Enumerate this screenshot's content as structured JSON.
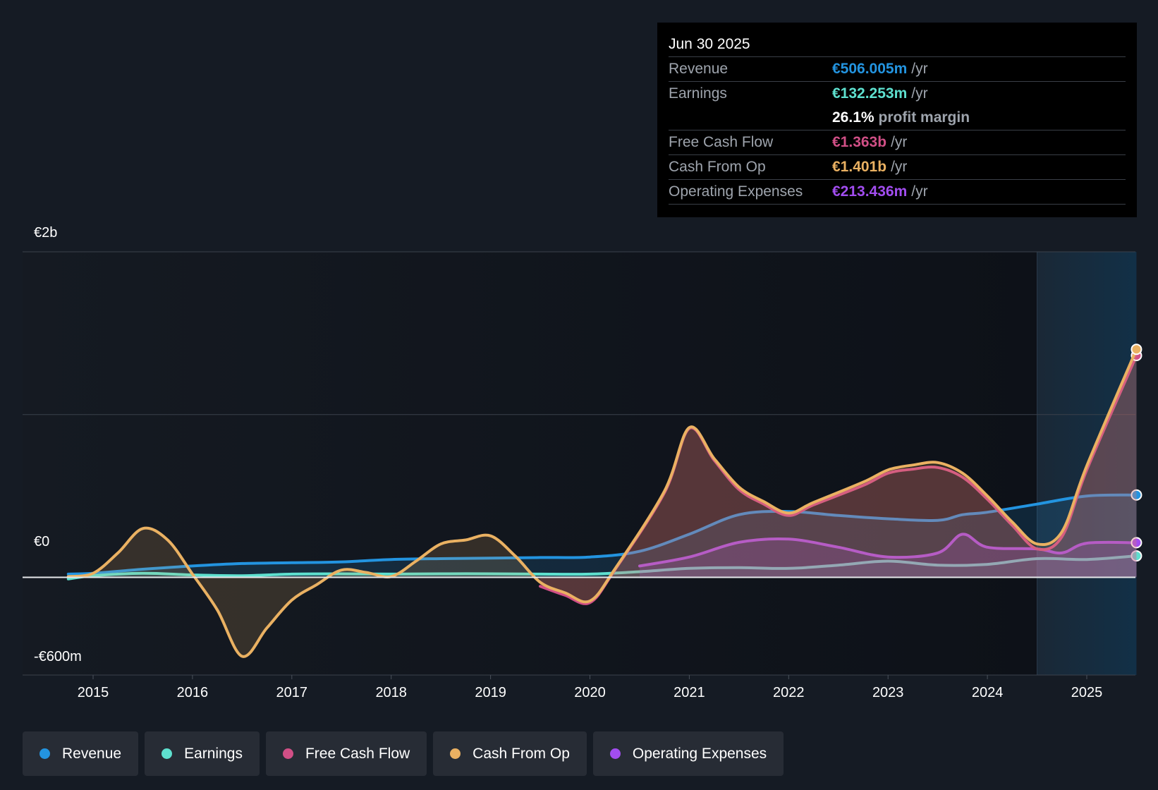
{
  "tooltip": {
    "date": "Jun 30 2025",
    "rows": [
      {
        "label": "Revenue",
        "value": "€506.005m",
        "unit": "/yr",
        "color": "#2394e0"
      },
      {
        "label": "Earnings",
        "value": "€132.253m",
        "unit": "/yr",
        "color": "#5ee0cf"
      },
      {
        "label": "",
        "value": "26.1%",
        "unit": "profit margin",
        "color": "#ffffff"
      },
      {
        "label": "Free Cash Flow",
        "value": "€1.363b",
        "unit": "/yr",
        "color": "#d14f86"
      },
      {
        "label": "Cash From Op",
        "value": "€1.401b",
        "unit": "/yr",
        "color": "#eab162"
      },
      {
        "label": "Operating Expenses",
        "value": "€213.436m",
        "unit": "/yr",
        "color": "#a24df0"
      }
    ]
  },
  "legend": [
    {
      "label": "Revenue",
      "color": "#2394e0"
    },
    {
      "label": "Earnings",
      "color": "#5ee0cf"
    },
    {
      "label": "Free Cash Flow",
      "color": "#d14f86"
    },
    {
      "label": "Cash From Op",
      "color": "#eab162"
    },
    {
      "label": "Operating Expenses",
      "color": "#a24df0"
    }
  ],
  "chart_data": {
    "type": "line",
    "title": "",
    "xlabel": "",
    "ylabel": "",
    "ylim": [
      -600,
      2000
    ],
    "xlim": [
      2014.3,
      2025.5
    ],
    "y_tick_labels": [
      {
        "value": 2000,
        "label": "€2b"
      },
      {
        "value": 0,
        "label": "€0"
      },
      {
        "value": -600,
        "label": "-€600m"
      }
    ],
    "x_ticks": [
      2015,
      2016,
      2017,
      2018,
      2019,
      2020,
      2021,
      2022,
      2023,
      2024,
      2025
    ],
    "forecast_start": 2024.5,
    "series": [
      {
        "name": "Revenue",
        "color": "#2394e0",
        "fill": true,
        "points": [
          [
            2014.75,
            20
          ],
          [
            2015,
            25
          ],
          [
            2015.5,
            50
          ],
          [
            2016,
            70
          ],
          [
            2016.5,
            85
          ],
          [
            2017,
            90
          ],
          [
            2017.5,
            95
          ],
          [
            2018,
            110
          ],
          [
            2018.5,
            115
          ],
          [
            2019,
            118
          ],
          [
            2019.5,
            122
          ],
          [
            2020,
            125
          ],
          [
            2020.5,
            160
          ],
          [
            2021,
            265
          ],
          [
            2021.5,
            385
          ],
          [
            2022,
            405
          ],
          [
            2022.5,
            380
          ],
          [
            2023,
            360
          ],
          [
            2023.5,
            350
          ],
          [
            2023.75,
            385
          ],
          [
            2024,
            400
          ],
          [
            2024.5,
            450
          ],
          [
            2025,
            500
          ],
          [
            2025.5,
            506
          ]
        ]
      },
      {
        "name": "Earnings",
        "color": "#5ee0cf",
        "fill": true,
        "points": [
          [
            2014.75,
            -10
          ],
          [
            2015,
            10
          ],
          [
            2015.5,
            25
          ],
          [
            2016,
            15
          ],
          [
            2016.5,
            10
          ],
          [
            2017,
            20
          ],
          [
            2017.5,
            22
          ],
          [
            2018,
            20
          ],
          [
            2018.5,
            22
          ],
          [
            2019,
            22
          ],
          [
            2019.5,
            20
          ],
          [
            2020,
            20
          ],
          [
            2020.5,
            35
          ],
          [
            2021,
            55
          ],
          [
            2021.5,
            60
          ],
          [
            2022,
            55
          ],
          [
            2022.5,
            75
          ],
          [
            2023,
            100
          ],
          [
            2023.5,
            75
          ],
          [
            2024,
            80
          ],
          [
            2024.5,
            115
          ],
          [
            2025,
            110
          ],
          [
            2025.5,
            132
          ]
        ]
      },
      {
        "name": "Operating Expenses",
        "color": "#a24df0",
        "fill": true,
        "points": [
          [
            2020.5,
            70
          ],
          [
            2021,
            125
          ],
          [
            2021.5,
            215
          ],
          [
            2022,
            235
          ],
          [
            2022.5,
            185
          ],
          [
            2023,
            125
          ],
          [
            2023.5,
            150
          ],
          [
            2023.75,
            265
          ],
          [
            2024,
            185
          ],
          [
            2024.5,
            175
          ],
          [
            2024.75,
            150
          ],
          [
            2025,
            210
          ],
          [
            2025.5,
            213
          ]
        ]
      },
      {
        "name": "Free Cash Flow",
        "color": "#d14f86",
        "fill": true,
        "points": [
          [
            2019.5,
            -55
          ],
          [
            2019.75,
            -110
          ],
          [
            2020,
            -155
          ],
          [
            2020.25,
            45
          ],
          [
            2020.75,
            520
          ],
          [
            2021,
            915
          ],
          [
            2021.25,
            720
          ],
          [
            2021.5,
            540
          ],
          [
            2021.75,
            450
          ],
          [
            2022,
            380
          ],
          [
            2022.25,
            445
          ],
          [
            2022.75,
            565
          ],
          [
            2023,
            640
          ],
          [
            2023.25,
            665
          ],
          [
            2023.5,
            675
          ],
          [
            2023.75,
            615
          ],
          [
            2024,
            480
          ],
          [
            2024.25,
            320
          ],
          [
            2024.5,
            175
          ],
          [
            2024.75,
            250
          ],
          [
            2025,
            660
          ],
          [
            2025.5,
            1363
          ]
        ]
      },
      {
        "name": "Cash From Op",
        "color": "#eab162",
        "fill": true,
        "points": [
          [
            2014.75,
            5
          ],
          [
            2015,
            25
          ],
          [
            2015.25,
            150
          ],
          [
            2015.5,
            300
          ],
          [
            2015.75,
            230
          ],
          [
            2016,
            20
          ],
          [
            2016.25,
            -200
          ],
          [
            2016.5,
            -485
          ],
          [
            2016.75,
            -310
          ],
          [
            2017,
            -140
          ],
          [
            2017.25,
            -45
          ],
          [
            2017.5,
            45
          ],
          [
            2017.75,
            30
          ],
          [
            2018,
            5
          ],
          [
            2018.25,
            100
          ],
          [
            2018.5,
            205
          ],
          [
            2018.75,
            230
          ],
          [
            2019,
            255
          ],
          [
            2019.25,
            130
          ],
          [
            2019.5,
            -30
          ],
          [
            2019.75,
            -95
          ],
          [
            2020,
            -145
          ],
          [
            2020.25,
            50
          ],
          [
            2020.75,
            530
          ],
          [
            2021,
            920
          ],
          [
            2021.25,
            730
          ],
          [
            2021.5,
            555
          ],
          [
            2021.75,
            465
          ],
          [
            2022,
            395
          ],
          [
            2022.25,
            460
          ],
          [
            2022.75,
            585
          ],
          [
            2023,
            660
          ],
          [
            2023.25,
            690
          ],
          [
            2023.5,
            705
          ],
          [
            2023.75,
            640
          ],
          [
            2024,
            500
          ],
          [
            2024.25,
            340
          ],
          [
            2024.5,
            205
          ],
          [
            2024.75,
            280
          ],
          [
            2025,
            685
          ],
          [
            2025.5,
            1401
          ]
        ]
      }
    ]
  }
}
